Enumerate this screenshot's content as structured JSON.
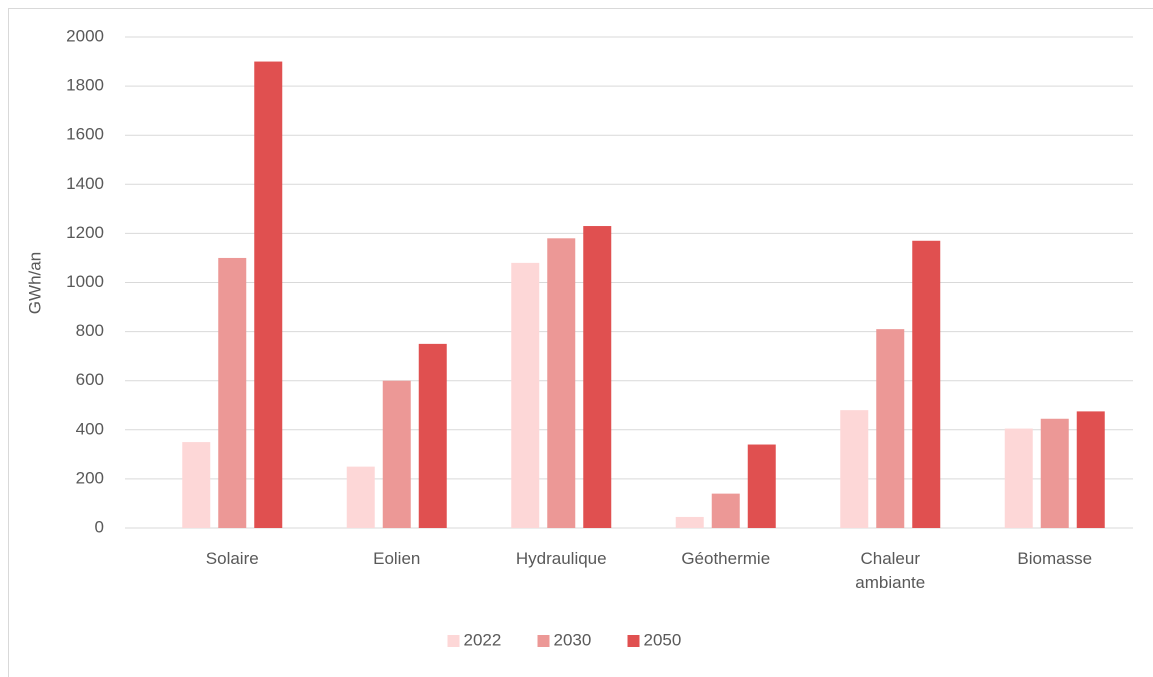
{
  "chart_data": {
    "type": "bar",
    "y_label": "GWh/an",
    "categories": [
      "Solaire",
      "Eolien",
      "Hydraulique",
      "Géothermie",
      "Chaleur ambiante",
      "Biomasse"
    ],
    "series": [
      {
        "name": "2022",
        "color": "#fdd7d7",
        "values": [
          350,
          250,
          1080,
          45,
          480,
          405
        ]
      },
      {
        "name": "2030",
        "color": "#ec9896",
        "values": [
          1100,
          600,
          1180,
          140,
          810,
          445
        ]
      },
      {
        "name": "2050",
        "color": "#e05050",
        "values": [
          1900,
          750,
          1230,
          340,
          1170,
          475
        ]
      }
    ],
    "ylim": [
      0,
      2000
    ],
    "yticks": [
      0,
      200,
      400,
      600,
      800,
      1000,
      1200,
      1400,
      1600,
      1800,
      2000
    ],
    "grid": true,
    "legend": "bottom"
  }
}
